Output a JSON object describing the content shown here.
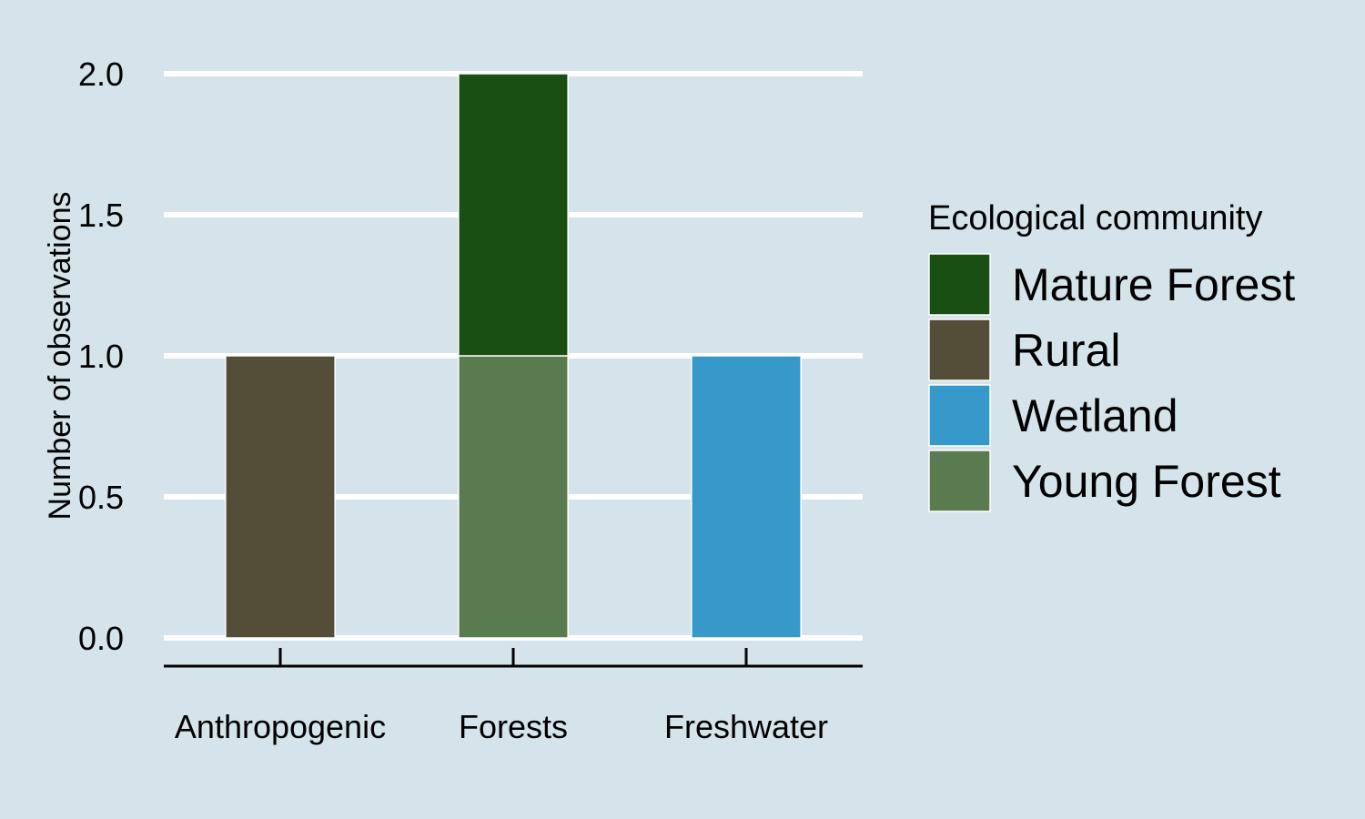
{
  "chart_data": {
    "type": "bar",
    "stacked": true,
    "title": "",
    "xlabel": "",
    "ylabel": "Number of observations",
    "ylim": [
      0,
      2.0
    ],
    "yticks": [
      "0.0",
      "0.5",
      "1.0",
      "1.5",
      "2.0"
    ],
    "categories": [
      "Anthropogenic",
      "Forests",
      "Freshwater"
    ],
    "series": [
      {
        "name": "Young Forest",
        "color": "#5a7a50",
        "values": [
          0,
          1,
          0
        ]
      },
      {
        "name": "Mature Forest",
        "color": "#1a4f14",
        "values": [
          0,
          1,
          0
        ]
      },
      {
        "name": "Rural",
        "color": "#544d37",
        "values": [
          1,
          0,
          0
        ]
      },
      {
        "name": "Wetland",
        "color": "#3799c9",
        "values": [
          0,
          0,
          1
        ]
      }
    ],
    "legend": {
      "title": "Ecological community",
      "position": "right",
      "items": [
        "Mature Forest",
        "Rural",
        "Wetland",
        "Young Forest"
      ]
    },
    "grid": "horizontal",
    "background_color": "#d5e4eb"
  }
}
